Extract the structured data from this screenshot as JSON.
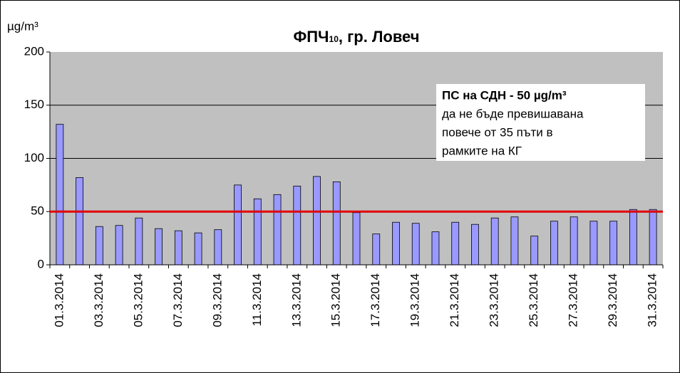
{
  "chart_data": {
    "type": "bar",
    "title": "ФПЧ",
    "title_subscript": "10",
    "title_suffix": ", гр. Ловеч",
    "y_label": "µg/m³",
    "categories": [
      "01.3.2014",
      null,
      "03.3.2014",
      null,
      "05.3.2014",
      null,
      "07.3.2014",
      null,
      "09.3.2014",
      null,
      "11.3.2014",
      null,
      "13.3.2014",
      null,
      "15.3.2014",
      null,
      "17.3.2014",
      null,
      "19.3.2014",
      null,
      "21.3.2014",
      null,
      "23.3.2014",
      null,
      "25.3.2014",
      null,
      "27.3.2014",
      null,
      "29.3.2014",
      null,
      "31.3.2014"
    ],
    "values": [
      132,
      82,
      36,
      37,
      44,
      34,
      32,
      30,
      33,
      75,
      62,
      66,
      74,
      83,
      78,
      49,
      29,
      40,
      39,
      31,
      40,
      38,
      44,
      45,
      27,
      41,
      45,
      41,
      41,
      52,
      52
    ],
    "color": "#9999ff",
    "threshold": 50,
    "threshold_color": "#e00000",
    "annotation": [
      "ПС на СДН  - 50 µg/m³",
      "да не бъде превишавана",
      "повече от 35 пъти в",
      "рамките на КГ"
    ],
    "ylim": [
      0,
      200
    ],
    "yticks": [
      0,
      50,
      100,
      150,
      200
    ],
    "grid": true
  }
}
